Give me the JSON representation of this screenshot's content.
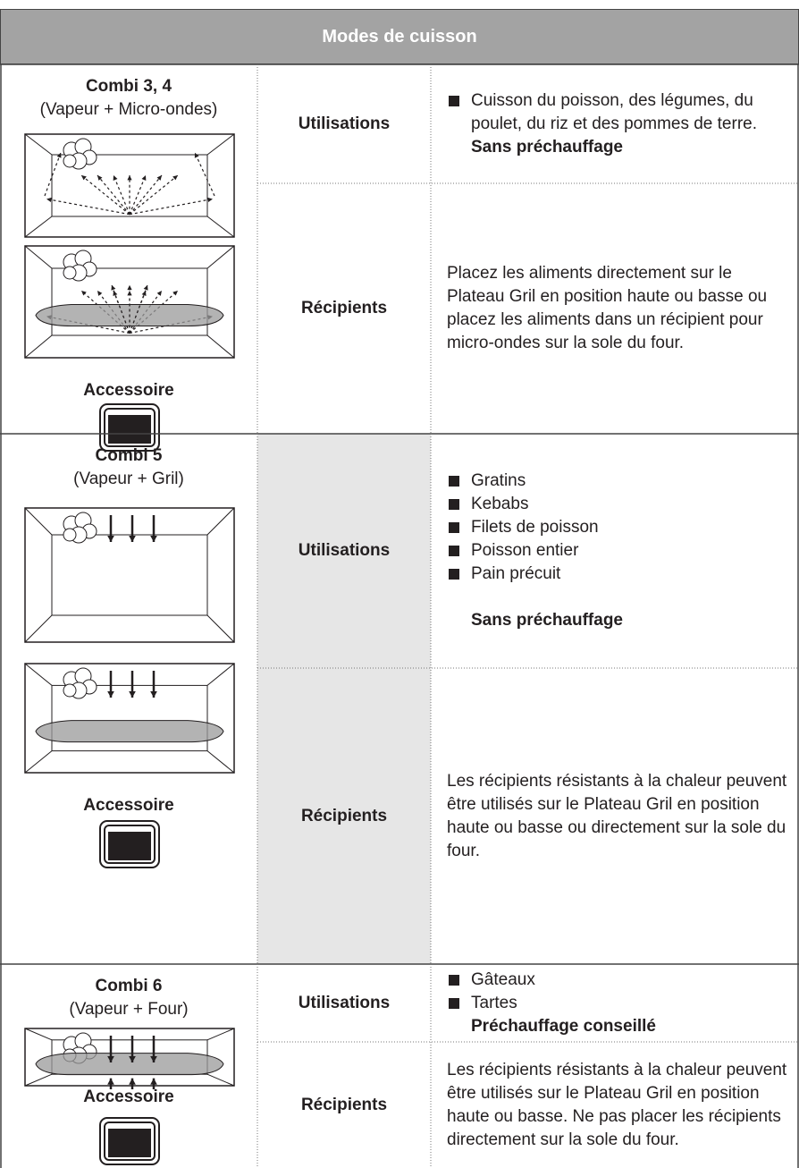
{
  "header": {
    "title": "Modes de cuisson"
  },
  "modes": [
    {
      "name": "Combi 3, 4",
      "subtitle": "(Vapeur + Micro-ondes)",
      "accessory": "Accessoire",
      "uses_label": "Utilisations",
      "uses": [
        "Cuisson du poisson, des légumes, du poulet, du riz et des pommes de terre."
      ],
      "uses_note": "Sans préchauffage",
      "containers_label": "Récipients",
      "containers": "Placez les aliments directement sur le Plateau Gril en position haute ou basse ou placez les aliments dans un récipient pour micro-ondes sur la sole du four."
    },
    {
      "name": "Combi 5",
      "subtitle": "(Vapeur + Gril)",
      "accessory": "Accessoire",
      "uses_label": "Utilisations",
      "uses": [
        "Gratins",
        "Kebabs",
        "Filets de poisson",
        "Poisson entier",
        "Pain précuit"
      ],
      "uses_note": "Sans préchauffage",
      "containers_label": "Récipients",
      "containers": "Les récipients résistants à la chaleur peuvent être utilisés sur le Plateau Gril en position haute ou basse ou directement sur la sole du four."
    },
    {
      "name": "Combi 6",
      "subtitle": "(Vapeur + Four)",
      "accessory": "Accessoire",
      "uses_label": "Utilisations",
      "uses": [
        "Gâteaux",
        "Tartes"
      ],
      "uses_note": "Préchauffage conseillé",
      "containers_label": "Récipients",
      "containers": "Les récipients résistants à la chaleur peuvent être utilisés sur le Plateau Gril en position haute ou basse. Ne pas placer les récipients directement sur la sole du four."
    }
  ]
}
